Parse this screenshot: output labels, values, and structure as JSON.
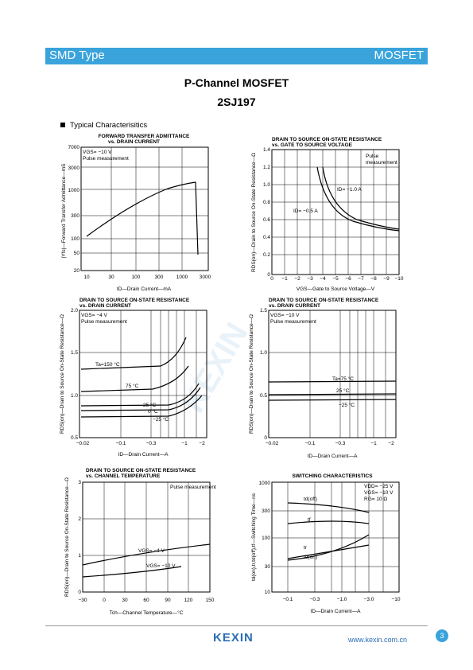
{
  "header": {
    "left": "SMD Type",
    "right": "MOSFET"
  },
  "title": {
    "line1": "P-Channel MOSFET",
    "line2": "2SJ197"
  },
  "section": "Typical  Characterisitics",
  "charts": {
    "c1": {
      "title": [
        "FORWARD TRANSFER ADMITTANCE",
        "vs. DRAIN CURRENT"
      ],
      "ylabel": "|Yfs|—Forward Transfer Admittance—mS",
      "xlabel": "ID—Drain Current—mA",
      "cond": [
        "VGS= −10 V",
        "Pulse measurement"
      ],
      "yticks": [
        "7000",
        "3000",
        "1000",
        "300",
        "100",
        "50",
        "20"
      ],
      "xticks": [
        "10",
        "30",
        "100",
        "300",
        "1000",
        "3000"
      ]
    },
    "c2": {
      "title": [
        "DRAIN TO SOURCE ON-STATE RESISTANCE",
        "vs. GATE TO SOURCE VOLTAGE"
      ],
      "ylabel": "RDS(on)—Drain to Source On-State Resistance—Ω",
      "xlabel": "VGS—Gate to Source Voltage—V",
      "cond": [
        "Pulse",
        "measurement"
      ],
      "yticks": [
        "1.4",
        "1.2",
        "1.0",
        "0.8",
        "0.6",
        "0.4",
        "0.2",
        "0"
      ],
      "xticks": [
        "0",
        "−1",
        "−2",
        "−3",
        "−4",
        "−5",
        "−6",
        "−7",
        "−8",
        "−9",
        "−10"
      ],
      "labels": [
        "ID= −1.0 A",
        "ID= −0.5 A"
      ]
    },
    "c3": {
      "title": [
        "DRAIN TO SOURCE ON-STATE RESISTANCE",
        "vs. DRAIN CURRENT"
      ],
      "ylabel": "RDS(on)—Drain to Source On-State Resistance—Ω",
      "xlabel": "ID—Drain Current—A",
      "cond": [
        "VGS= −4 V",
        "Pulse measurement"
      ],
      "yticks": [
        "2.0",
        "1.5",
        "1.0",
        "0.5"
      ],
      "xticks": [
        "−0.02",
        "−0.1",
        "−0.3",
        "−1",
        "−2"
      ],
      "labels": [
        "Ta=150 °C",
        "75 °C",
        "25 °C",
        "0 °C",
        "−25 °C"
      ]
    },
    "c4": {
      "title": [
        "DRAIN TO SOURCE ON-STATE RESISTANCE",
        "vs. DRAIN CURRENT"
      ],
      "ylabel": "RDS(on)—Drain to Source On-State Resistance—Ω",
      "xlabel": "ID—Drain Current—A",
      "cond": [
        "VGS= −10 V",
        "Pulse measurement"
      ],
      "yticks": [
        "1.5",
        "1.0",
        "0.5",
        "0"
      ],
      "xticks": [
        "−0.02",
        "−0.1",
        "−0.3",
        "−1",
        "−2"
      ],
      "labels": [
        "Ta=75 °C",
        "25 °C",
        "−25 °C"
      ]
    },
    "c5": {
      "title": [
        "DRAIN TO SOURCE ON-STATE RESISTANCE",
        "vs. CHANNEL TEMPERATURE"
      ],
      "ylabel": "RDS(on)—Drain to Source On-State Resistance—Ω",
      "xlabel": "Tch—Channel Temperature—°C",
      "cond": [
        "Pulse measurement"
      ],
      "yticks": [
        "3",
        "2",
        "1",
        "0"
      ],
      "xticks": [
        "−30",
        "0",
        "30",
        "60",
        "90",
        "120",
        "150"
      ],
      "labels": [
        "VGS= −4 V",
        "VGS= −10 V"
      ]
    },
    "c6": {
      "title": [
        "SWITCHING CHARACTERISTICS"
      ],
      "ylabel": "td(on),tr,td(off),tf—Switching Time—ns",
      "xlabel": "ID—Drain Current—A",
      "cond": [
        "VDD= −25 V",
        "VGS= −10 V",
        "RG= 10 Ω"
      ],
      "yticks": [
        "1000",
        "300",
        "100",
        "30",
        "10"
      ],
      "xticks": [
        "−0.1",
        "−0.3",
        "−1.0",
        "−3.0",
        "−10"
      ],
      "labels": [
        "td(off)",
        "tf",
        "tr",
        "td(on)"
      ]
    }
  },
  "footer": {
    "logo": "KEXIN",
    "url": "www.kexin.com.cn",
    "page": "3"
  }
}
